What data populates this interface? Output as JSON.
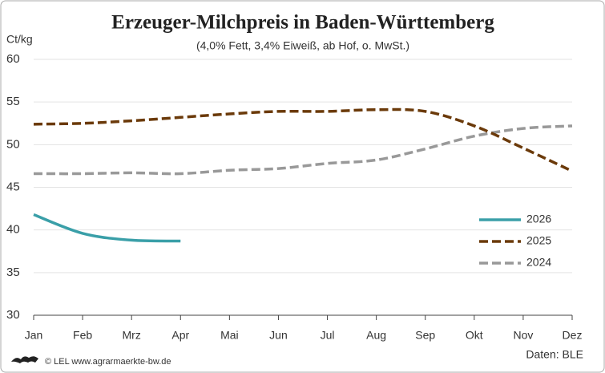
{
  "chart_data": {
    "type": "line",
    "title": "Erzeuger-Milchpreis in Baden-Württemberg",
    "subtitle": "(4,0% Fett, 3,4% Eiweiß, ab Hof, o. MwSt.)",
    "y_axis_label": "Ct/kg",
    "categories": [
      "Jan",
      "Feb",
      "Mrz",
      "Apr",
      "Mai",
      "Jun",
      "Jul",
      "Aug",
      "Sep",
      "Okt",
      "Nov",
      "Dez"
    ],
    "series": [
      {
        "name": "2026",
        "color": "#3a9fa8",
        "dashed": false,
        "values": [
          41.8,
          39.6,
          38.8,
          38.7,
          null,
          null,
          null,
          null,
          null,
          null,
          null,
          null
        ]
      },
      {
        "name": "2025",
        "color": "#6b3a0a",
        "dashed": true,
        "values": [
          52.4,
          52.5,
          52.8,
          53.2,
          53.6,
          53.9,
          53.9,
          54.1,
          53.9,
          52.2,
          49.6,
          46.9
        ]
      },
      {
        "name": "2024",
        "color": "#999999",
        "dashed": true,
        "values": [
          46.6,
          46.6,
          46.7,
          46.6,
          47.0,
          47.2,
          47.8,
          48.2,
          49.5,
          51.0,
          51.9,
          52.2
        ]
      }
    ],
    "ylim": [
      30,
      60
    ],
    "yticks": [
      30,
      35,
      40,
      45,
      50,
      55,
      60
    ],
    "grid": true,
    "legend": "right",
    "source": "© LEL www.agrarmaerkte-bw.de",
    "credit": "Daten: BLE"
  }
}
